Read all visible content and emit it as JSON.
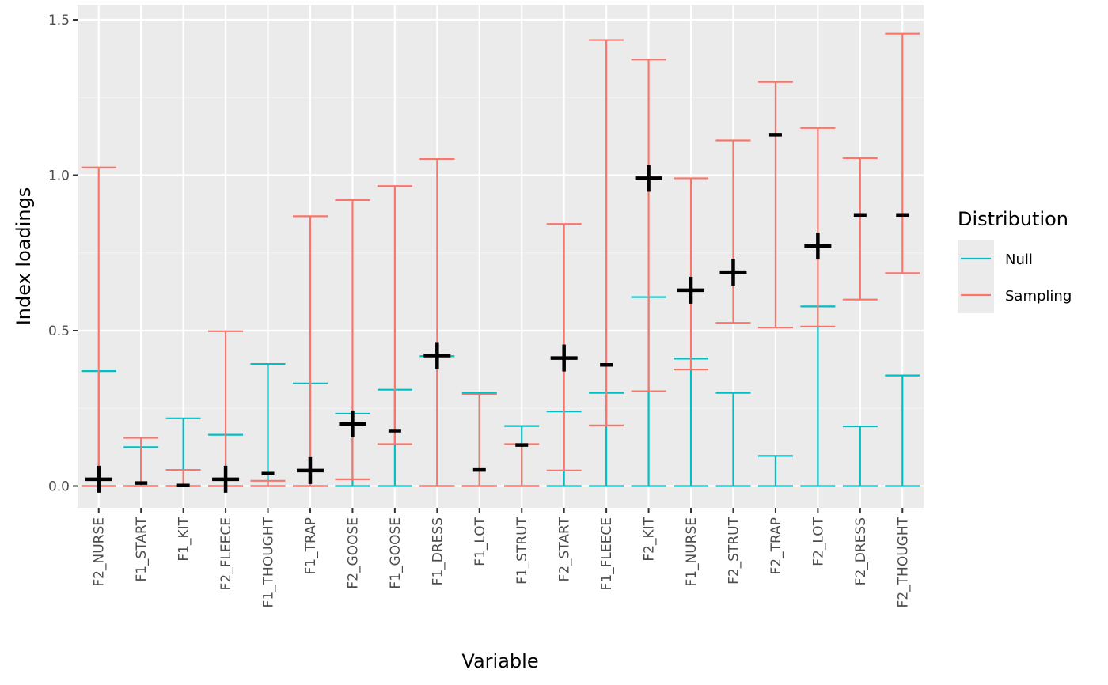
{
  "chart_data": {
    "type": "errorbar",
    "xlabel": "Variable",
    "ylabel": "Index loadings",
    "ylim": [
      -0.07,
      1.53
    ],
    "yticks": [
      "0.0",
      "0.5",
      "1.0",
      "1.5"
    ],
    "ytick_values": [
      0,
      0.5,
      1.0,
      1.5
    ],
    "categories": [
      "F2_NURSE",
      "F1_START",
      "F1_KIT",
      "F2_FLEECE",
      "F1_THOUGHT",
      "F1_TRAP",
      "F2_GOOSE",
      "F1_GOOSE",
      "F1_DRESS",
      "F1_LOT",
      "F1_STRUT",
      "F2_START",
      "F1_FLEECE",
      "F2_KIT",
      "F1_NURSE",
      "F2_STRUT",
      "F2_TRAP",
      "F2_LOT",
      "F2_DRESS",
      "F2_THOUGHT"
    ],
    "legend_title": "Distribution",
    "legend_position": "right",
    "grid": true,
    "series": [
      {
        "name": "Null",
        "color": "#00BFC4",
        "lower": [
          0,
          0,
          0,
          0,
          0,
          0,
          0,
          0,
          0,
          0,
          0,
          0,
          0,
          0,
          0,
          0,
          0,
          0,
          0,
          0
        ],
        "upper": [
          0.37,
          0.125,
          0.218,
          0.165,
          0.393,
          0.33,
          0.233,
          0.31,
          0.418,
          0.3,
          0.193,
          0.24,
          0.3,
          0.608,
          0.41,
          0.3,
          0.097,
          0.578,
          0.192,
          0.356
        ]
      },
      {
        "name": "Sampling",
        "color": "#F8766D",
        "lower": [
          0,
          0,
          0,
          0,
          0,
          0,
          0.022,
          0.135,
          0,
          0,
          0,
          0.05,
          0.195,
          0.305,
          0.375,
          0.525,
          0.51,
          0.513,
          0.6,
          0.685
        ],
        "upper": [
          1.025,
          0.155,
          0.052,
          0.498,
          0.017,
          0.868,
          0.92,
          0.965,
          1.052,
          0.295,
          0.135,
          0.843,
          1.435,
          1.372,
          0.99,
          1.112,
          1.3,
          1.152,
          1.055,
          1.455
        ]
      }
    ],
    "points": {
      "color": "#000000",
      "values": [
        0.022,
        0.01,
        0.002,
        0.022,
        0.04,
        0.05,
        0.2,
        0.178,
        0.42,
        0.052,
        0.132,
        0.412,
        0.39,
        0.99,
        0.63,
        0.688,
        1.13,
        0.772,
        0.872,
        0.872
      ],
      "shape": [
        "plus",
        "dash",
        "dash",
        "plus",
        "dash",
        "plus",
        "plus",
        "dash",
        "plus",
        "dash",
        "dash",
        "plus",
        "dash",
        "plus",
        "plus",
        "plus",
        "dash",
        "plus",
        "dash",
        "dash"
      ]
    }
  }
}
